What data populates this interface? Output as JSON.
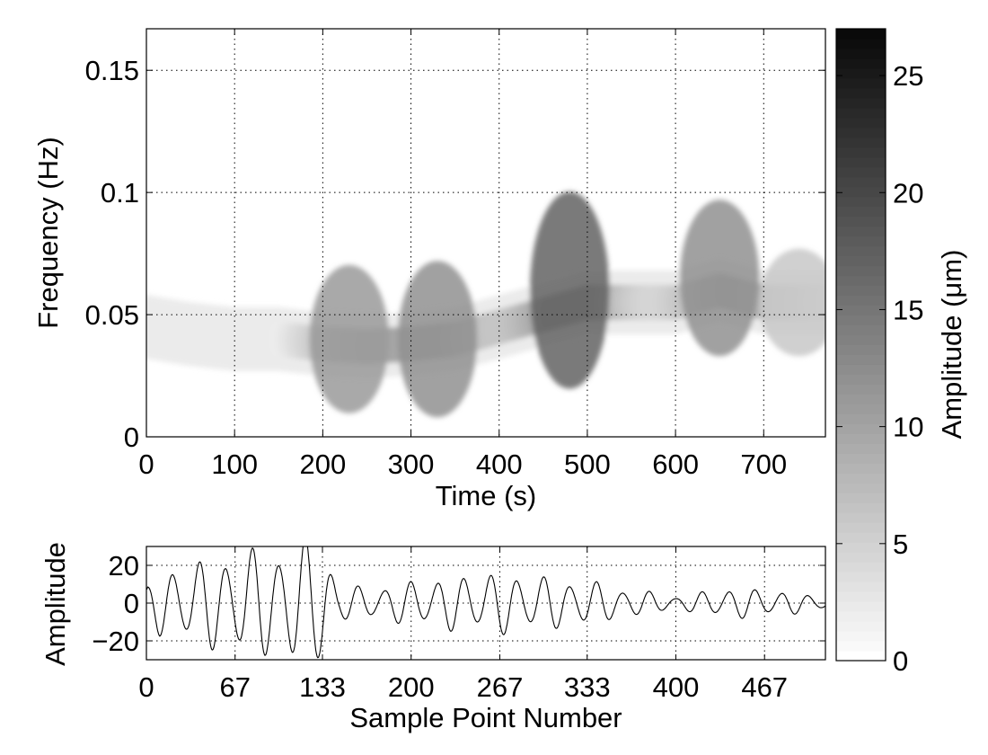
{
  "chart_data": [
    {
      "type": "heatmap",
      "xlabel": "Time (s)",
      "ylabel": "Frequency (Hz)",
      "xlim": [
        0,
        770
      ],
      "ylim": [
        0,
        0.167
      ],
      "xticks": [
        0,
        100,
        200,
        300,
        400,
        500,
        600,
        700
      ],
      "yticks": [
        0,
        0.05,
        0.1,
        0.15
      ],
      "ytick_labels": [
        "0",
        "0.05",
        "0.1",
        "0.15"
      ],
      "grid": true,
      "colormap": "gray-reversed",
      "ridge": {
        "time": [
          0,
          50,
          100,
          150,
          200,
          250,
          300,
          350,
          400,
          450,
          500,
          550,
          600,
          650,
          700,
          770
        ],
        "frequency": [
          0.045,
          0.042,
          0.04,
          0.04,
          0.038,
          0.037,
          0.038,
          0.04,
          0.045,
          0.05,
          0.055,
          0.055,
          0.055,
          0.06,
          0.055,
          0.055
        ]
      },
      "peaks": [
        {
          "time": 230,
          "frequency": 0.04,
          "amplitude": 11
        },
        {
          "time": 330,
          "frequency": 0.04,
          "amplitude": 12
        },
        {
          "time": 480,
          "frequency": 0.06,
          "amplitude": 17
        },
        {
          "time": 650,
          "frequency": 0.065,
          "amplitude": 12
        },
        {
          "time": 740,
          "frequency": 0.055,
          "amplitude": 6
        }
      ],
      "colorbar": {
        "label": "Amplitude (μm)",
        "range": [
          0,
          27
        ],
        "ticks": [
          0,
          5,
          10,
          15,
          20,
          25
        ]
      }
    },
    {
      "type": "line",
      "xlabel": "Sample Point Number",
      "ylabel": "Amplitude",
      "xlim": [
        0,
        513
      ],
      "ylim": [
        -30,
        30
      ],
      "xticks": [
        0,
        67,
        133,
        200,
        267,
        333,
        400,
        467
      ],
      "yticks": [
        -20,
        0,
        20
      ],
      "ytick_labels": [
        "−20",
        "0",
        "20"
      ],
      "grid": true,
      "period_samples": 20,
      "envelope": {
        "sample": [
          0,
          10,
          30,
          60,
          90,
          120,
          135,
          145,
          170,
          200,
          260,
          300,
          333,
          360,
          400,
          420,
          440,
          470,
          500,
          513
        ],
        "amplitude": [
          8,
          14,
          18,
          22,
          25,
          28,
          30,
          8,
          7,
          10,
          14,
          12,
          10,
          7,
          3,
          5,
          7,
          6,
          4,
          3
        ]
      }
    }
  ]
}
